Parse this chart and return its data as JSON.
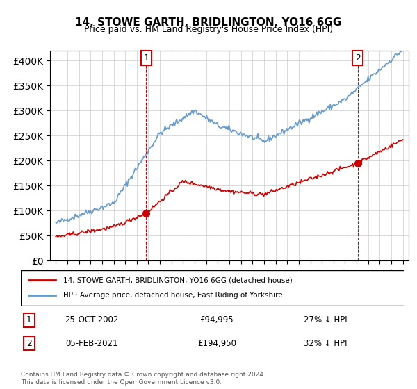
{
  "title": "14, STOWE GARTH, BRIDLINGTON, YO16 6GG",
  "subtitle": "Price paid vs. HM Land Registry's House Price Index (HPI)",
  "ylim": [
    0,
    420000
  ],
  "yticks": [
    0,
    50000,
    100000,
    150000,
    200000,
    250000,
    300000,
    350000,
    400000
  ],
  "sale1_year": 2002.82,
  "sale1_price": 94995,
  "sale1_label": "1",
  "sale2_year": 2021.09,
  "sale2_price": 194950,
  "sale2_label": "2",
  "legend_line1": "14, STOWE GARTH, BRIDLINGTON, YO16 6GG (detached house)",
  "legend_line2": "HPI: Average price, detached house, East Riding of Yorkshire",
  "table_row1": [
    "1",
    "25-OCT-2002",
    "£94,995",
    "27% ↓ HPI"
  ],
  "table_row2": [
    "2",
    "05-FEB-2021",
    "£194,950",
    "32% ↓ HPI"
  ],
  "footer1": "Contains HM Land Registry data © Crown copyright and database right 2024.",
  "footer2": "This data is licensed under the Open Government Licence v3.0.",
  "hpi_color": "#6699cc",
  "price_color": "#cc0000",
  "sale_marker_color": "#cc0000",
  "vline_color": "#cc0000",
  "background_color": "#ffffff",
  "grid_color": "#cccccc"
}
